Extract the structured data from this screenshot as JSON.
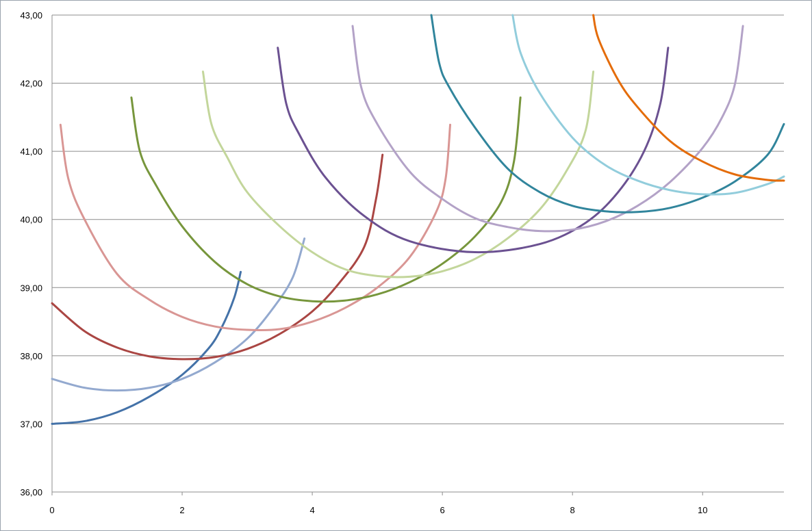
{
  "chart_data": {
    "type": "line",
    "title": "",
    "xlabel": "",
    "ylabel": "",
    "xlim": [
      0,
      11.25
    ],
    "ylim": [
      36,
      43
    ],
    "grid": "horizontal",
    "legend": "none",
    "x_ticks": [
      "0",
      "2",
      "4",
      "6",
      "8",
      "10"
    ],
    "x_tick_values": [
      0,
      2,
      4,
      6,
      8,
      10
    ],
    "y_ticks": [
      "36,00",
      "37,00",
      "38,00",
      "39,00",
      "40,00",
      "41,00",
      "42,00",
      "43,00"
    ],
    "y_tick_values": [
      36,
      37,
      38,
      39,
      40,
      41,
      42,
      43
    ],
    "series": [
      {
        "color": "#4472a8",
        "points": [
          [
            0,
            37
          ],
          [
            0.5,
            37.04
          ],
          [
            1,
            37.17
          ],
          [
            1.5,
            37.4
          ],
          [
            2,
            37.72
          ],
          [
            2.4,
            38.1
          ],
          [
            2.6,
            38.4
          ],
          [
            2.8,
            38.85
          ],
          [
            2.9,
            39.23
          ]
        ]
      },
      {
        "color": "#93a9cf",
        "points": [
          [
            0,
            37.66
          ],
          [
            0.5,
            37.53
          ],
          [
            1,
            37.49
          ],
          [
            1.5,
            37.53
          ],
          [
            2,
            37.66
          ],
          [
            2.5,
            37.9
          ],
          [
            3,
            38.25
          ],
          [
            3.4,
            38.7
          ],
          [
            3.7,
            39.15
          ],
          [
            3.88,
            39.72
          ]
        ]
      },
      {
        "color": "#aa4643",
        "points": [
          [
            0,
            38.77
          ],
          [
            0.5,
            38.36
          ],
          [
            1,
            38.12
          ],
          [
            1.5,
            37.99
          ],
          [
            2,
            37.95
          ],
          [
            2.5,
            37.98
          ],
          [
            3,
            38.1
          ],
          [
            3.5,
            38.32
          ],
          [
            4,
            38.65
          ],
          [
            4.4,
            39.05
          ],
          [
            4.8,
            39.6
          ],
          [
            4.98,
            40.3
          ],
          [
            5.08,
            40.95
          ]
        ]
      },
      {
        "color": "#d99694",
        "points": [
          [
            0.13,
            41.39
          ],
          [
            0.25,
            40.6
          ],
          [
            0.5,
            40
          ],
          [
            1,
            39.2
          ],
          [
            1.5,
            38.82
          ],
          [
            2,
            38.57
          ],
          [
            2.5,
            38.43
          ],
          [
            3,
            38.38
          ],
          [
            3.5,
            38.39
          ],
          [
            4,
            38.5
          ],
          [
            4.5,
            38.7
          ],
          [
            5,
            39
          ],
          [
            5.5,
            39.45
          ],
          [
            5.9,
            40.1
          ],
          [
            6.05,
            40.6
          ],
          [
            6.12,
            41.39
          ]
        ]
      },
      {
        "color": "#77963c",
        "points": [
          [
            1.22,
            41.79
          ],
          [
            1.35,
            41
          ],
          [
            1.6,
            40.5
          ],
          [
            2,
            39.9
          ],
          [
            2.5,
            39.38
          ],
          [
            3,
            39.05
          ],
          [
            3.5,
            38.87
          ],
          [
            4,
            38.8
          ],
          [
            4.5,
            38.81
          ],
          [
            5,
            38.9
          ],
          [
            5.5,
            39.08
          ],
          [
            6,
            39.35
          ],
          [
            6.5,
            39.75
          ],
          [
            6.9,
            40.25
          ],
          [
            7.1,
            40.85
          ],
          [
            7.2,
            41.79
          ]
        ]
      },
      {
        "color": "#c3d69b",
        "points": [
          [
            2.32,
            42.17
          ],
          [
            2.45,
            41.4
          ],
          [
            2.7,
            40.9
          ],
          [
            3,
            40.4
          ],
          [
            3.5,
            39.9
          ],
          [
            4,
            39.52
          ],
          [
            4.5,
            39.27
          ],
          [
            5,
            39.17
          ],
          [
            5.5,
            39.16
          ],
          [
            6,
            39.24
          ],
          [
            6.5,
            39.42
          ],
          [
            7,
            39.72
          ],
          [
            7.5,
            40.15
          ],
          [
            7.9,
            40.7
          ],
          [
            8.2,
            41.3
          ],
          [
            8.32,
            42.17
          ]
        ]
      },
      {
        "color": "#6b5191",
        "points": [
          [
            3.47,
            42.52
          ],
          [
            3.6,
            41.7
          ],
          [
            3.8,
            41.25
          ],
          [
            4.2,
            40.62
          ],
          [
            4.8,
            40.05
          ],
          [
            5.5,
            39.68
          ],
          [
            6.5,
            39.52
          ],
          [
            7.5,
            39.64
          ],
          [
            8.2,
            39.95
          ],
          [
            8.7,
            40.4
          ],
          [
            9.1,
            41
          ],
          [
            9.35,
            41.7
          ],
          [
            9.47,
            42.52
          ]
        ]
      },
      {
        "color": "#b3a2c7",
        "points": [
          [
            4.62,
            42.84
          ],
          [
            4.75,
            41.95
          ],
          [
            5,
            41.4
          ],
          [
            5.5,
            40.7
          ],
          [
            6,
            40.3
          ],
          [
            6.5,
            40.02
          ],
          [
            7,
            39.89
          ],
          [
            7.5,
            39.83
          ],
          [
            8,
            39.85
          ],
          [
            8.5,
            39.97
          ],
          [
            9,
            40.2
          ],
          [
            9.5,
            40.55
          ],
          [
            10,
            41.05
          ],
          [
            10.3,
            41.5
          ],
          [
            10.5,
            42
          ],
          [
            10.62,
            42.84
          ]
        ]
      },
      {
        "color": "#31859c",
        "points": [
          [
            5.83,
            43
          ],
          [
            5.95,
            42.3
          ],
          [
            6.1,
            41.95
          ],
          [
            6.5,
            41.35
          ],
          [
            7,
            40.75
          ],
          [
            7.5,
            40.4
          ],
          [
            8,
            40.2
          ],
          [
            8.5,
            40.12
          ],
          [
            9,
            40.11
          ],
          [
            9.5,
            40.17
          ],
          [
            10,
            40.32
          ],
          [
            10.5,
            40.56
          ],
          [
            11,
            40.95
          ],
          [
            11.25,
            41.4
          ]
        ]
      },
      {
        "color": "#92cddc",
        "points": [
          [
            7.08,
            43
          ],
          [
            7.2,
            42.45
          ],
          [
            7.5,
            41.85
          ],
          [
            8,
            41.2
          ],
          [
            8.5,
            40.8
          ],
          [
            9,
            40.57
          ],
          [
            9.5,
            40.43
          ],
          [
            10,
            40.37
          ],
          [
            10.5,
            40.39
          ],
          [
            11,
            40.52
          ],
          [
            11.25,
            40.63
          ]
        ]
      },
      {
        "color": "#e46c0a",
        "points": [
          [
            8.32,
            43
          ],
          [
            8.4,
            42.65
          ],
          [
            8.7,
            42.05
          ],
          [
            9,
            41.65
          ],
          [
            9.5,
            41.15
          ],
          [
            10,
            40.85
          ],
          [
            10.5,
            40.66
          ],
          [
            11,
            40.58
          ],
          [
            11.25,
            40.57
          ]
        ]
      }
    ]
  }
}
